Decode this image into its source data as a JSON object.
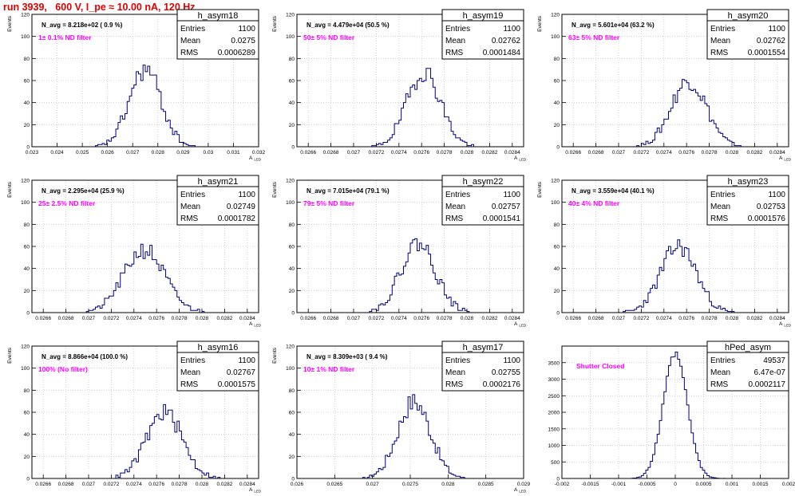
{
  "header": {
    "title": "run 3939,   600 V, I_pe ≈ 10.00 nA, 120 Hz"
  },
  "colors": {
    "histogram_line": "#000080",
    "annotation": "#ff00ff",
    "title_red": "#e00000",
    "grid": "#c8c8c8"
  },
  "chart_data": [
    {
      "type": "histogram",
      "name": "h_asym18",
      "ylabel": "Events",
      "xlabel": "A_LED",
      "stats": {
        "entries": "1100",
        "mean": "0.0275",
        "rms": "0.0006289"
      },
      "navg_label": "N_avg = 8.218e+02 ( 0.9 %)",
      "filter_label": "1± 0.1% ND filter",
      "xlim": [
        0.023,
        0.032
      ],
      "xticks": [
        "0.023",
        "0.024",
        "0.025",
        "0.026",
        "0.027",
        "0.028",
        "0.029",
        "0.03",
        "0.031",
        "0.032"
      ],
      "ylim": [
        0,
        120
      ],
      "yticks": [
        "0",
        "20",
        "40",
        "60",
        "80",
        "100",
        "120"
      ],
      "grid": true,
      "mean": 0.0275,
      "rms": 0.0006289,
      "peak": 70,
      "nbins": 100,
      "seed": 18
    },
    {
      "type": "histogram",
      "name": "h_asym19",
      "ylabel": "Events",
      "xlabel": "A_LED",
      "stats": {
        "entries": "1100",
        "mean": "0.02762",
        "rms": "0.0001484"
      },
      "navg_label": "N_avg = 4.479e+04 (50.5 %)",
      "filter_label": "50± 5% ND filter",
      "xlim": [
        0.0265,
        0.0285
      ],
      "xticks": [
        "0.0266",
        "0.0268",
        "0.027",
        "0.0272",
        "0.0274",
        "0.0276",
        "0.0278",
        "0.028",
        "0.0282",
        "0.0284"
      ],
      "ylim": [
        0,
        120
      ],
      "yticks": [
        "0",
        "20",
        "40",
        "60",
        "80",
        "100",
        "120"
      ],
      "grid": true,
      "mean": 0.02762,
      "rms": 0.0001484,
      "peak": 68,
      "nbins": 100,
      "seed": 19
    },
    {
      "type": "histogram",
      "name": "h_asym20",
      "ylabel": "Events",
      "xlabel": "A_LED",
      "stats": {
        "entries": "1100",
        "mean": "0.02762",
        "rms": "0.0001554"
      },
      "navg_label": "N_avg = 5.601e+04 (63.2 %)",
      "filter_label": "63± 5% ND filter",
      "xlim": [
        0.0265,
        0.0285
      ],
      "xticks": [
        "0.0266",
        "0.0268",
        "0.027",
        "0.0272",
        "0.0274",
        "0.0276",
        "0.0278",
        "0.028",
        "0.0282",
        "0.0284"
      ],
      "ylim": [
        0,
        120
      ],
      "yticks": [
        "0",
        "20",
        "40",
        "60",
        "80",
        "100",
        "120"
      ],
      "grid": true,
      "mean": 0.02762,
      "rms": 0.0001554,
      "peak": 60,
      "nbins": 100,
      "seed": 20
    },
    {
      "type": "histogram",
      "name": "h_asym21",
      "ylabel": "Events",
      "xlabel": "A_LED",
      "stats": {
        "entries": "1100",
        "mean": "0.02749",
        "rms": "0.0001782"
      },
      "navg_label": "N_avg = 2.295e+04 (25.9 %)",
      "filter_label": "25± 2.5% ND filter",
      "xlim": [
        0.0265,
        0.0285
      ],
      "xticks": [
        "0.0266",
        "0.0268",
        "0.027",
        "0.0272",
        "0.0274",
        "0.0276",
        "0.0278",
        "0.028",
        "0.0282",
        "0.0284"
      ],
      "ylim": [
        0,
        120
      ],
      "yticks": [
        "0",
        "20",
        "40",
        "60",
        "80",
        "100",
        "120"
      ],
      "grid": true,
      "mean": 0.02749,
      "rms": 0.0001782,
      "peak": 57,
      "nbins": 100,
      "seed": 21
    },
    {
      "type": "histogram",
      "name": "h_asym22",
      "ylabel": "Events",
      "xlabel": "A_LED",
      "stats": {
        "entries": "1100",
        "mean": "0.02757",
        "rms": "0.0001541"
      },
      "navg_label": "N_avg = 7.015e+04 (79.1 %)",
      "filter_label": "79± 5% ND filter",
      "xlim": [
        0.0265,
        0.0285
      ],
      "xticks": [
        "0.0266",
        "0.0268",
        "0.027",
        "0.0272",
        "0.0274",
        "0.0276",
        "0.0278",
        "0.028",
        "0.0282",
        "0.0284"
      ],
      "ylim": [
        0,
        120
      ],
      "yticks": [
        "0",
        "20",
        "40",
        "60",
        "80",
        "100",
        "120"
      ],
      "grid": true,
      "mean": 0.02757,
      "rms": 0.0001541,
      "peak": 63,
      "nbins": 100,
      "seed": 22
    },
    {
      "type": "histogram",
      "name": "h_asym23",
      "ylabel": "Events",
      "xlabel": "A_LED",
      "stats": {
        "entries": "1100",
        "mean": "0.02753",
        "rms": "0.0001576"
      },
      "navg_label": "N_avg = 3.559e+04 (40.1 %)",
      "filter_label": "40± 4% ND filter",
      "xlim": [
        0.0265,
        0.0285
      ],
      "xticks": [
        "0.0266",
        "0.0268",
        "0.027",
        "0.0272",
        "0.0274",
        "0.0276",
        "0.0278",
        "0.028",
        "0.0282",
        "0.0284"
      ],
      "ylim": [
        0,
        120
      ],
      "yticks": [
        "0",
        "20",
        "40",
        "60",
        "80",
        "100",
        "120"
      ],
      "grid": true,
      "mean": 0.02753,
      "rms": 0.0001576,
      "peak": 60,
      "nbins": 100,
      "seed": 23
    },
    {
      "type": "histogram",
      "name": "h_asym16",
      "ylabel": "Events",
      "xlabel": "A_LED",
      "stats": {
        "entries": "1100",
        "mean": "0.02767",
        "rms": "0.0001575"
      },
      "navg_label": "N_avg = 8.866e+04 (100.0 %)",
      "filter_label": "100% (No filter)",
      "xlim": [
        0.0265,
        0.0285
      ],
      "xticks": [
        "0.0266",
        "0.0268",
        "0.027",
        "0.0272",
        "0.0274",
        "0.0276",
        "0.0278",
        "0.028",
        "0.0282",
        "0.0284"
      ],
      "ylim": [
        0,
        120
      ],
      "yticks": [
        "0",
        "20",
        "40",
        "60",
        "80",
        "100",
        "120"
      ],
      "grid": true,
      "mean": 0.02767,
      "rms": 0.0001575,
      "peak": 60,
      "nbins": 100,
      "seed": 16
    },
    {
      "type": "histogram",
      "name": "h_asym17",
      "ylabel": "Events",
      "xlabel": "A_LED",
      "stats": {
        "entries": "1100",
        "mean": "0.02755",
        "rms": "0.0002176"
      },
      "navg_label": "N_avg = 8.309e+03 ( 9.4 %)",
      "filter_label": "10± 1% ND filter",
      "xlim": [
        0.026,
        0.029
      ],
      "xticks": [
        "0.026",
        "0.0265",
        "0.027",
        "0.0275",
        "0.028",
        "0.0285",
        "0.029"
      ],
      "ylim": [
        0,
        120
      ],
      "yticks": [
        "0",
        "20",
        "40",
        "60",
        "80",
        "100",
        "120"
      ],
      "grid": true,
      "mean": 0.02755,
      "rms": 0.0002176,
      "peak": 70,
      "nbins": 100,
      "seed": 17
    },
    {
      "type": "histogram",
      "name": "hPed_asym",
      "ylabel": "",
      "xlabel": "",
      "stats": {
        "entries": "49537",
        "mean": "6.47e-07",
        "rms": "0.0002117"
      },
      "navg_label": "",
      "filter_label": "Shutter Closed",
      "xlim": [
        -0.002,
        0.002
      ],
      "xticks": [
        "-0.002",
        "-0.0015",
        "-0.001",
        "-0.0005",
        "0",
        "0.0005",
        "0.001",
        "0.0015",
        "0.002"
      ],
      "ylim": [
        0,
        4000
      ],
      "yticks": [
        "0",
        "500",
        "1000",
        "1500",
        "2000",
        "2500",
        "3000",
        "3500"
      ],
      "grid": true,
      "mean": 6.5e-07,
      "rms": 0.0002117,
      "peak": 3750,
      "nbins": 100,
      "seed": 99
    }
  ]
}
